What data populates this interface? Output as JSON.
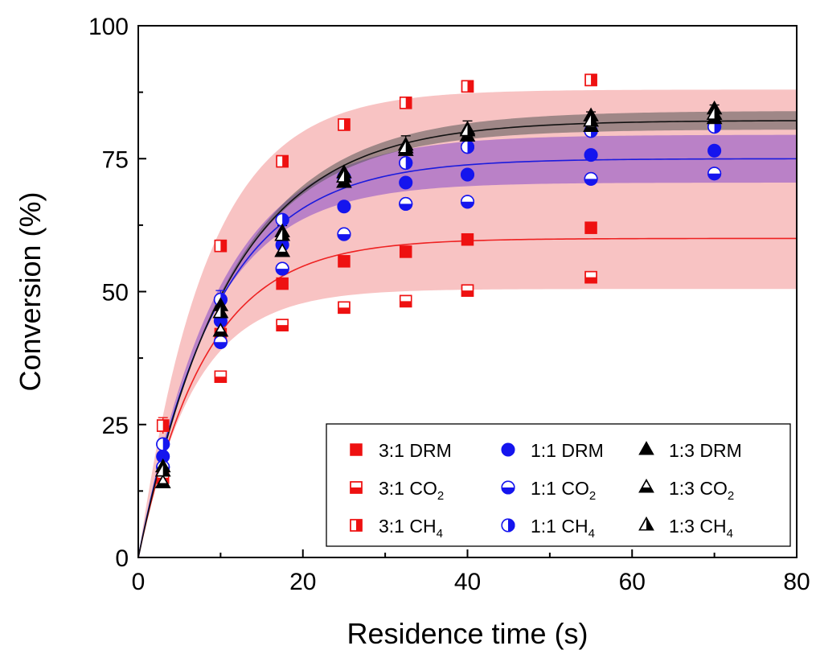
{
  "chart_data": {
    "type": "scatter",
    "xlabel": "Residence time (s)",
    "ylabel": "Conversion (%)",
    "xlim": [
      0,
      80
    ],
    "ylim": [
      0,
      100
    ],
    "xticks": [
      0,
      20,
      40,
      60,
      80
    ],
    "yticks": [
      0,
      25,
      50,
      75,
      100
    ],
    "grid": false,
    "legend_position": "bottom-right",
    "series": [
      {
        "name": "3:1 DRM",
        "ratio": "3:1",
        "quantity": "DRM",
        "color": "#ee1111",
        "marker": "square",
        "fill": "full",
        "x": [
          3,
          10,
          17.5,
          25,
          32.5,
          40,
          55
        ],
        "y": [
          15.5,
          42,
          51.5,
          55.7,
          57.5,
          59.8,
          62
        ]
      },
      {
        "name": "3:1 CO2",
        "ratio": "3:1",
        "quantity": "CO",
        "sub": "2",
        "color": "#ee1111",
        "marker": "square",
        "fill": "bottom",
        "x": [
          3,
          10,
          17.5,
          25,
          32.5,
          40,
          55
        ],
        "y": [
          15,
          34,
          43.7,
          47,
          48.2,
          50.2,
          52.7
        ]
      },
      {
        "name": "3:1 CH4",
        "ratio": "3:1",
        "quantity": "CH",
        "sub": "4",
        "color": "#ee1111",
        "marker": "square",
        "fill": "right",
        "x": [
          3,
          10,
          17.5,
          25,
          32.5,
          40,
          55
        ],
        "y": [
          24.8,
          58.6,
          74.5,
          81.4,
          85.5,
          88.6,
          89.8
        ]
      },
      {
        "name": "1:1 DRM",
        "ratio": "1:1",
        "quantity": "DRM",
        "color": "#1515ee",
        "marker": "circle",
        "fill": "full",
        "x": [
          3,
          10,
          17.5,
          25,
          32.5,
          40,
          55,
          70
        ],
        "y": [
          19,
          44.5,
          58.8,
          66,
          70.5,
          72,
          75.7,
          76.5
        ]
      },
      {
        "name": "1:1 CO2",
        "ratio": "1:1",
        "quantity": "CO",
        "sub": "2",
        "color": "#1515ee",
        "marker": "circle",
        "fill": "bottom",
        "x": [
          3,
          10,
          17.5,
          25,
          32.5,
          40,
          55,
          70
        ],
        "y": [
          17,
          40.5,
          54.3,
          60.8,
          66.5,
          66.9,
          71.2,
          72.2
        ]
      },
      {
        "name": "1:1 CH4",
        "ratio": "1:1",
        "quantity": "CH",
        "sub": "4",
        "color": "#1515ee",
        "marker": "circle",
        "fill": "right",
        "x": [
          3,
          10,
          17.5,
          25,
          32.5,
          40,
          55,
          70
        ],
        "y": [
          21.3,
          48.5,
          63.5,
          71.5,
          74.2,
          77.2,
          80.2,
          81
        ]
      },
      {
        "name": "1:3 DRM",
        "ratio": "1:3",
        "quantity": "DRM",
        "color": "#000000",
        "marker": "triangle",
        "fill": "full",
        "x": [
          3,
          10,
          17.5,
          25,
          32.5,
          40,
          55,
          70
        ],
        "y": [
          17,
          47.3,
          61.2,
          72.3,
          77.5,
          80.5,
          83,
          84.3
        ]
      },
      {
        "name": "1:3 CO2",
        "ratio": "1:3",
        "quantity": "CO",
        "sub": "2",
        "color": "#000000",
        "marker": "triangle",
        "fill": "bottom",
        "x": [
          3,
          10,
          17.5,
          25,
          32.5,
          40,
          55,
          70
        ],
        "y": [
          14,
          42.5,
          57.5,
          70.5,
          76.5,
          79.2,
          81,
          82.5
        ]
      },
      {
        "name": "1:3 CH4",
        "ratio": "1:3",
        "quantity": "CH",
        "sub": "4",
        "color": "#000000",
        "marker": "triangle",
        "fill": "right",
        "x": [
          3,
          10,
          17.5,
          25,
          32.5,
          40,
          55,
          70
        ],
        "y": [
          16.2,
          46,
          60.5,
          71.5,
          77,
          80.2,
          82,
          83.3
        ]
      }
    ],
    "error_bars": [
      {
        "x": 3,
        "y": 24.8,
        "err": 1.5,
        "color": "#ee1111"
      },
      {
        "x": 10,
        "y": 48.5,
        "err": 1.7,
        "color": "#1515ee"
      },
      {
        "x": 10,
        "y": 47.3,
        "err": 1.2,
        "color": "#000000"
      },
      {
        "x": 17.5,
        "y": 61.2,
        "err": 1.2,
        "color": "#000000"
      },
      {
        "x": 32.5,
        "y": 77.5,
        "err": 1.8,
        "color": "#000000"
      },
      {
        "x": 40,
        "y": 80.5,
        "err": 1.6,
        "color": "#000000"
      },
      {
        "x": 55,
        "y": 83,
        "err": 0.8,
        "color": "#000000"
      },
      {
        "x": 70,
        "y": 84.3,
        "err": 0.8,
        "color": "#000000"
      }
    ],
    "fits": [
      {
        "id": "fit-3-1",
        "color": "#ee2222",
        "ymax": 60,
        "tau": 8.2
      },
      {
        "id": "fit-1-1",
        "color": "#1b1bdd",
        "ymax": 75,
        "tau": 9.6
      },
      {
        "id": "fit-1-3",
        "color": "#111111",
        "ymax": 82.2,
        "tau": 11.0
      }
    ],
    "bands": [
      {
        "id": "band-3-1",
        "color": "#f4a3a3",
        "opacity": 0.65,
        "lower_ymax": 50.5,
        "lower_tau": 6.8,
        "upper_ymax": 88,
        "upper_tau": 8.3
      },
      {
        "id": "band-1-1",
        "color": "#7b3fcc",
        "opacity": 0.5,
        "lower_ymax": 70.5,
        "lower_tau": 8.6,
        "upper_ymax": 79.5,
        "upper_tau": 9.7
      },
      {
        "id": "band-1-3",
        "color": "#555555",
        "opacity": 0.55,
        "lower_ymax": 80.5,
        "lower_tau": 10.6,
        "upper_ymax": 84,
        "upper_tau": 11.2
      }
    ]
  }
}
